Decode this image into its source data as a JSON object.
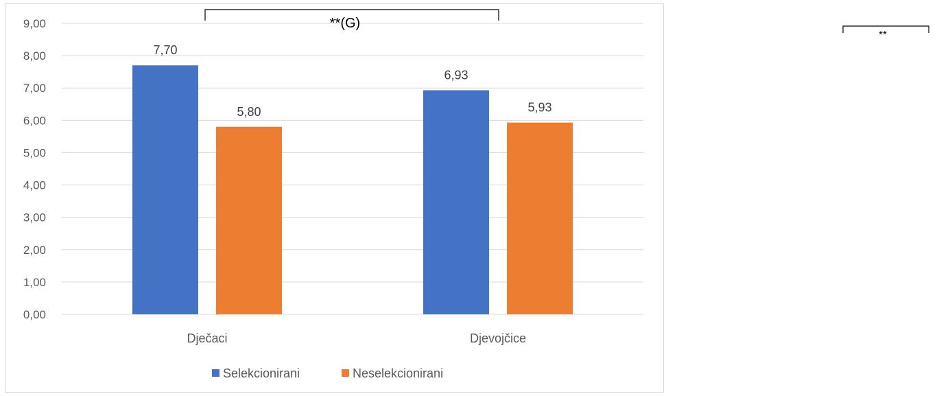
{
  "chart_data": {
    "type": "bar",
    "categories": [
      "Dječaci",
      "Djevojčice"
    ],
    "series": [
      {
        "name": "Selekcionirani",
        "values": [
          7.7,
          6.93
        ],
        "labels": [
          "7,70",
          "6,93"
        ],
        "color": "#4472c4"
      },
      {
        "name": "Neselekcionirani",
        "values": [
          5.8,
          5.93
        ],
        "labels": [
          "5,80",
          "5,93"
        ],
        "color": "#ed7d31"
      }
    ],
    "ylim": [
      0,
      9
    ],
    "yticks": [
      0,
      1,
      2,
      3,
      4,
      5,
      6,
      7,
      8,
      9
    ],
    "ytick_labels": [
      "0,00",
      "1,00",
      "2,00",
      "3,00",
      "4,00",
      "5,00",
      "6,00",
      "7,00",
      "8,00",
      "9,00"
    ],
    "grid": true,
    "legend_position": "bottom",
    "annotations": [
      {
        "text": "**(G)",
        "type": "bracket"
      },
      {
        "text": "**",
        "type": "bracket"
      }
    ],
    "title": "",
    "xlabel": "",
    "ylabel": ""
  }
}
